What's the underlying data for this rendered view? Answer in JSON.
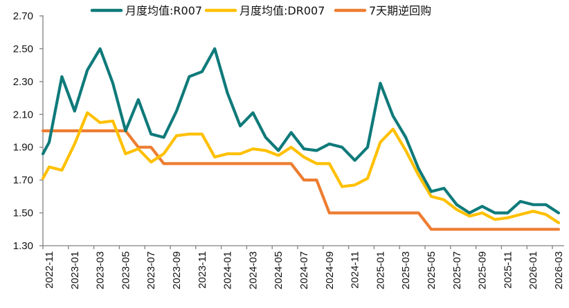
{
  "chart_data": {
    "type": "line",
    "title": "",
    "xlabel": "",
    "ylabel": "",
    "ylim": [
      1.3,
      2.7
    ],
    "yticks": [
      "1.30",
      "1.50",
      "1.70",
      "1.90",
      "2.10",
      "2.30",
      "2.50",
      "2.70"
    ],
    "grid": false,
    "legend_position": "top",
    "x": [
      "2022-10",
      "2022-11",
      "2022-12",
      "2023-01",
      "2023-02",
      "2023-03",
      "2023-04",
      "2023-05",
      "2023-06",
      "2023-07",
      "2023-08",
      "2023-09",
      "2023-10",
      "2023-11",
      "2023-12",
      "2024-01",
      "2024-02",
      "2024-03",
      "2024-04",
      "2024-05",
      "2024-06",
      "2024-07",
      "2024-08",
      "2024-09",
      "2024-10",
      "2024-11",
      "2024-12",
      "2025-01",
      "2025-02",
      "2025-03",
      "2025-04",
      "2025-05",
      "2025-06",
      "2025-07",
      "2025-08",
      "2025-09",
      "2025-10",
      "2025-11",
      "2025-12",
      "2026-01",
      "2026-02",
      "2026-03"
    ],
    "xtick_labels": [
      "2022-11",
      "2023-01",
      "2023-03",
      "2023-05",
      "2023-07",
      "2023-09",
      "2023-11",
      "2024-01",
      "2024-03",
      "2024-05",
      "2024-07",
      "2024-09",
      "2024-11",
      "2025-01",
      "2025-03",
      "2025-05",
      "2025-07",
      "2025-09",
      "2025-11",
      "2026-01",
      "2026-03"
    ],
    "series": [
      {
        "name": "月度均值:R007",
        "color": "#0f7a7a",
        "values": [
          1.86,
          1.93,
          2.33,
          2.12,
          2.37,
          2.5,
          2.29,
          2.0,
          2.19,
          1.98,
          1.96,
          2.12,
          2.33,
          2.36,
          2.5,
          2.23,
          2.03,
          2.11,
          1.96,
          1.88,
          1.99,
          1.89,
          1.88,
          1.92,
          1.9,
          1.82,
          1.9,
          2.29,
          2.09,
          1.96,
          1.77,
          1.63,
          1.65,
          1.55,
          1.5,
          1.54,
          1.5,
          1.5,
          1.57,
          1.55,
          1.55,
          1.5
        ]
      },
      {
        "name": "月度均值:DR007",
        "color": "#ffc000",
        "values": [
          1.71,
          1.78,
          1.76,
          1.92,
          2.11,
          2.05,
          2.06,
          1.86,
          1.89,
          1.81,
          1.86,
          1.97,
          1.98,
          1.98,
          1.84,
          1.86,
          1.86,
          1.89,
          1.88,
          1.85,
          1.9,
          1.84,
          1.8,
          1.8,
          1.66,
          1.67,
          1.71,
          1.93,
          2.01,
          1.88,
          1.73,
          1.6,
          1.58,
          1.52,
          1.48,
          1.5,
          1.46,
          1.47,
          1.49,
          1.51,
          1.49,
          1.44
        ]
      },
      {
        "name": "7天期逆回购",
        "color": "#ed7d31",
        "values": [
          2.0,
          2.0,
          2.0,
          2.0,
          2.0,
          2.0,
          2.0,
          2.0,
          1.9,
          1.9,
          1.8,
          1.8,
          1.8,
          1.8,
          1.8,
          1.8,
          1.8,
          1.8,
          1.8,
          1.8,
          1.8,
          1.7,
          1.7,
          1.5,
          1.5,
          1.5,
          1.5,
          1.5,
          1.5,
          1.5,
          1.5,
          1.4,
          1.4,
          1.4,
          1.4,
          1.4,
          1.4,
          1.4,
          1.4,
          1.4,
          1.4,
          1.4
        ]
      }
    ]
  }
}
